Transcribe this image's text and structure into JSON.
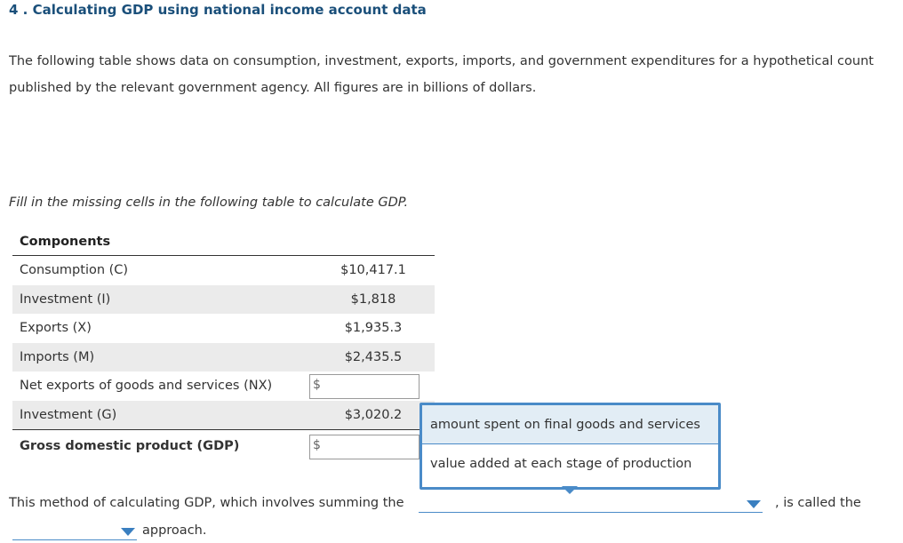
{
  "question": {
    "title": "4 . Calculating GDP using national income account data",
    "intro_line1": "The following table shows data on consumption, investment, exports, imports, and government expenditures for a hypothetical count",
    "intro_line2": "published by the relevant government agency. All figures are in billions of dollars.",
    "instruction": "Fill in the missing cells in the following table to calculate GDP."
  },
  "table": {
    "header": "Components",
    "rows": [
      {
        "label": "Consumption (C)",
        "value": "$10,417.1"
      },
      {
        "label": "Investment (I)",
        "value": "$1,818"
      },
      {
        "label": "Exports (X)",
        "value": "$1,935.3"
      },
      {
        "label": "Imports (M)",
        "value": "$2,435.5"
      },
      {
        "label": "Net exports of goods and services (NX)",
        "input_prefix": "$",
        "input_value": ""
      },
      {
        "label": "Investment (G)",
        "value": "$3,020.2"
      }
    ],
    "total": {
      "label": "Gross domestic product (GDP)",
      "input_prefix": "$",
      "input_value": ""
    }
  },
  "dropdown_popup": {
    "options": [
      "amount spent on final goods and services",
      "value added at each stage of production"
    ],
    "highlighted": 0
  },
  "sentence": {
    "part1": "This method of calculating GDP, which involves summing the",
    "part2": ", is called the",
    "part3": "approach."
  },
  "colors": {
    "accent": "#4a8bc8",
    "title": "#1a4f7a",
    "row_shade": "#ebebeb",
    "option_highlight": "#e2edf5"
  }
}
